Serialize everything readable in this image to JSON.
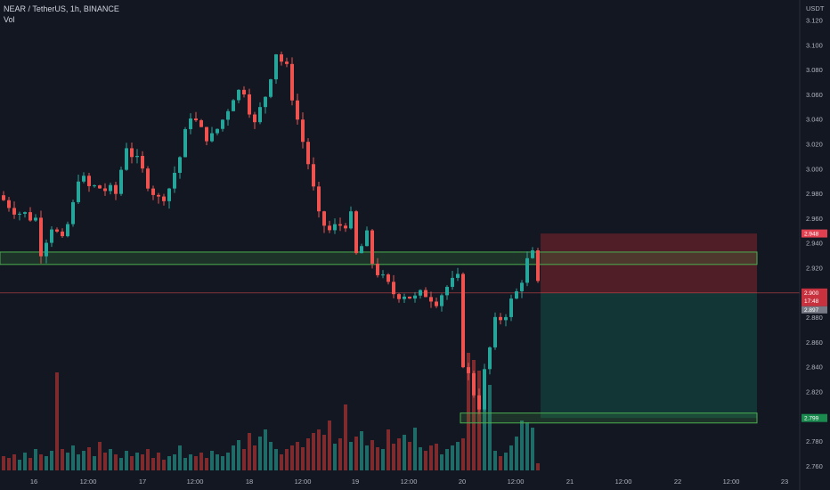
{
  "header": {
    "symbol_line": "NEAR / TetherUS, 1h, BINANCE",
    "volume_label": "Vol",
    "currency": "USDT"
  },
  "colors": {
    "background": "#131722",
    "up": "#26a69a",
    "down": "#ef5350",
    "vol_up": "#1f6b67",
    "vol_down": "#7f2b2e",
    "zone": "#4caf50",
    "stop_fill": "#5b2028",
    "target_fill": "#123a37",
    "entry_line": "#ef5350",
    "target_tag": "#1b8a4f",
    "stop_tag": "#e04050"
  },
  "price_tags": {
    "stop": "2.948",
    "entry_top": "2.900",
    "entry_mid": "17:48",
    "entry_bottom": "2.897",
    "target": "2.799"
  },
  "chart_data": {
    "type": "candlestick",
    "title": "NEAR / TetherUS, 1h, BINANCE",
    "ylabel": "USDT",
    "ylim": [
      2.752,
      3.126
    ],
    "y_ticks": [
      "3.120",
      "3.100",
      "3.080",
      "3.060",
      "3.040",
      "3.020",
      "3.000",
      "2.980",
      "2.960",
      "2.940",
      "2.920",
      "2.900",
      "2.880",
      "2.860",
      "2.840",
      "2.820",
      "2.800",
      "2.780",
      "2.760"
    ],
    "x_ticks": [
      "16",
      "12:00",
      "17",
      "12:00",
      "18",
      "12:00",
      "19",
      "12:00",
      "20",
      "12:00",
      "21",
      "12:00",
      "22",
      "12:00",
      "23"
    ],
    "candle_count": 101,
    "anchors": [
      [
        0,
        2.975
      ],
      [
        3,
        2.965
      ],
      [
        6,
        2.96
      ],
      [
        7,
        2.935
      ],
      [
        9,
        2.955
      ],
      [
        11,
        2.94
      ],
      [
        13,
        2.97
      ],
      [
        14,
        2.995
      ],
      [
        16,
        2.985
      ],
      [
        18,
        2.985
      ],
      [
        21,
        2.98
      ],
      [
        23,
        3.02
      ],
      [
        25,
        3.005
      ],
      [
        27,
        2.99
      ],
      [
        29,
        2.975
      ],
      [
        31,
        2.985
      ],
      [
        33,
        3.01
      ],
      [
        35,
        3.045
      ],
      [
        37,
        3.03
      ],
      [
        39,
        3.025
      ],
      [
        41,
        3.04
      ],
      [
        43,
        3.06
      ],
      [
        45,
        3.065
      ],
      [
        47,
        3.035
      ],
      [
        49,
        3.06
      ],
      [
        51,
        3.095
      ],
      [
        53,
        3.08
      ],
      [
        55,
        3.04
      ],
      [
        57,
        3.005
      ],
      [
        59,
        2.96
      ],
      [
        61,
        2.95
      ],
      [
        63,
        2.955
      ],
      [
        65,
        2.96
      ],
      [
        66,
        2.93
      ],
      [
        68,
        2.945
      ],
      [
        69,
        2.925
      ],
      [
        71,
        2.91
      ],
      [
        73,
        2.9
      ],
      [
        75,
        2.9
      ],
      [
        77,
        2.895
      ],
      [
        79,
        2.9
      ],
      [
        81,
        2.895
      ],
      [
        83,
        2.905
      ],
      [
        85,
        2.91
      ],
      [
        86,
        2.845
      ],
      [
        88,
        2.82
      ],
      [
        89,
        2.81
      ],
      [
        90,
        2.835
      ],
      [
        92,
        2.875
      ],
      [
        94,
        2.885
      ],
      [
        96,
        2.9
      ],
      [
        98,
        2.925
      ],
      [
        99,
        2.93
      ],
      [
        100,
        2.905
      ]
    ],
    "volumes": [
      8,
      7,
      9,
      6,
      10,
      7,
      12,
      9,
      8,
      11,
      55,
      12,
      10,
      14,
      9,
      11,
      13,
      8,
      16,
      10,
      12,
      9,
      7,
      11,
      8,
      10,
      9,
      12,
      7,
      10,
      6,
      8,
      9,
      14,
      7,
      9,
      8,
      10,
      7,
      11,
      9,
      8,
      10,
      14,
      17,
      12,
      21,
      14,
      19,
      23,
      16,
      12,
      9,
      12,
      14,
      16,
      13,
      18,
      21,
      23,
      20,
      28,
      15,
      18,
      37,
      16,
      19,
      22,
      14,
      17,
      13,
      12,
      23,
      15,
      18,
      20,
      16,
      24,
      13,
      11,
      14,
      15,
      9,
      12,
      14,
      16,
      18,
      66,
      62,
      56,
      54,
      48,
      11,
      8,
      10,
      14,
      19,
      28,
      27,
      24,
      4
    ],
    "zones": [
      {
        "name": "resistance-zone",
        "low": 2.923,
        "high": 2.933,
        "from": 0,
        "to": 141
      },
      {
        "name": "support-zone",
        "low": 2.795,
        "high": 2.803,
        "from": 86,
        "to": 141
      }
    ],
    "position": {
      "entry": 2.9,
      "stop": 2.948,
      "target": 2.799,
      "from": 100.5,
      "to": 141
    },
    "grid": false,
    "legend": "top-left"
  }
}
